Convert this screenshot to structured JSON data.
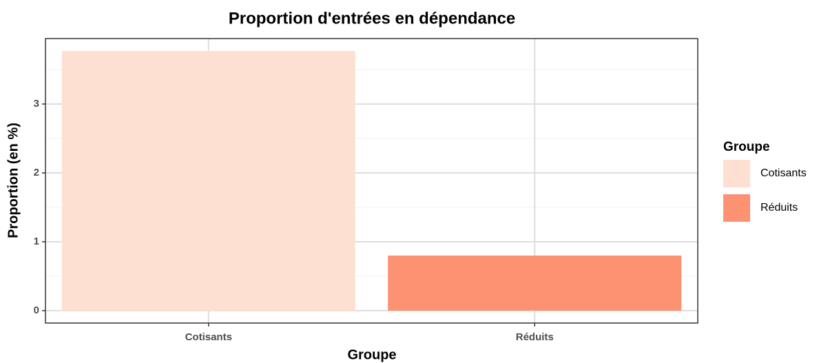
{
  "chart_data": {
    "type": "bar",
    "title": "Proportion d'entrées en dépendance",
    "xlabel": "Groupe",
    "ylabel": "Proportion (en %)",
    "categories": [
      "Cotisants",
      "Réduits"
    ],
    "values": [
      3.77,
      0.8
    ],
    "colors": [
      "#fee0d2",
      "#fc9272"
    ],
    "ylim": [
      -0.18,
      3.95
    ],
    "yticks": [
      0,
      1,
      2,
      3
    ],
    "grid": true,
    "legend": {
      "title": "Groupe",
      "position": "right"
    }
  }
}
